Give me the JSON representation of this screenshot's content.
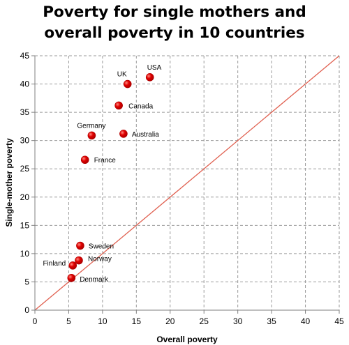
{
  "chart_data": {
    "type": "scatter",
    "title_lines": [
      "Poverty for single mothers and",
      "overall poverty in 10 countries"
    ],
    "xlabel": "Overall poverty",
    "ylabel": "Single-mother poverty",
    "xlim": [
      0,
      45
    ],
    "ylim": [
      0,
      45
    ],
    "xticks": [
      0,
      5,
      10,
      15,
      20,
      25,
      30,
      35,
      40,
      45
    ],
    "yticks": [
      0,
      5,
      10,
      15,
      20,
      25,
      30,
      35,
      40,
      45
    ],
    "grid": true,
    "points": [
      {
        "label": "USA",
        "x": 17.0,
        "y": 41.2
      },
      {
        "label": "UK",
        "x": 13.7,
        "y": 40.0
      },
      {
        "label": "Canada",
        "x": 12.4,
        "y": 36.2
      },
      {
        "label": "Germany",
        "x": 8.4,
        "y": 30.9
      },
      {
        "label": "Australia",
        "x": 13.1,
        "y": 31.2
      },
      {
        "label": "France",
        "x": 7.4,
        "y": 26.6
      },
      {
        "label": "Sweden",
        "x": 6.7,
        "y": 11.4
      },
      {
        "label": "Norway",
        "x": 6.5,
        "y": 8.8
      },
      {
        "label": "Finland",
        "x": 5.6,
        "y": 7.9
      },
      {
        "label": "Denmark",
        "x": 5.4,
        "y": 5.7
      }
    ],
    "reference_line": {
      "description": "y = x",
      "from": [
        0,
        0
      ],
      "to": [
        45,
        45
      ]
    },
    "colors": {
      "points": "#e00000",
      "reference_line": "#e06050",
      "grid": "#9a9a9a",
      "axis": "#7f7f7f"
    }
  }
}
